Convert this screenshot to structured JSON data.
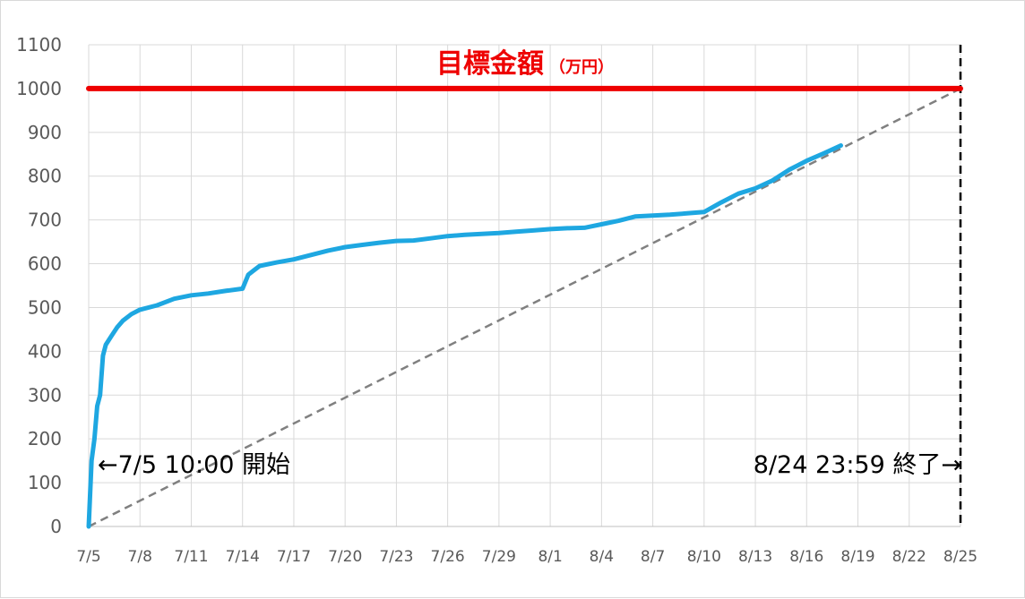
{
  "chart_data": {
    "type": "line",
    "title": "目標金額",
    "title_unit": "（万円）",
    "ylim": [
      0,
      1100
    ],
    "y_ticks": [
      "0",
      "100",
      "200",
      "300",
      "400",
      "500",
      "600",
      "700",
      "800",
      "900",
      "1000",
      "1100"
    ],
    "x_tick_labels": [
      "7/5",
      "7/8",
      "7/11",
      "7/14",
      "7/17",
      "7/20",
      "7/23",
      "7/26",
      "7/29",
      "8/1",
      "8/4",
      "8/7",
      "8/10",
      "8/13",
      "8/16",
      "8/19",
      "8/22",
      "8/25"
    ],
    "x_start": "7/5",
    "x_end": "8/25",
    "grid": true,
    "target_value": 1000,
    "target_color": "#ee0000",
    "series_color": "#1ea7e1",
    "guide_color": "#808080",
    "end_marker_color": "#000000",
    "annotations": {
      "start": "←7/5 10:00 開始",
      "end": "8/24 23:59 終了→"
    },
    "series": [
      {
        "x": [
          "7/5",
          "7/5",
          "7/5",
          "7/5",
          "7/5",
          "7/5",
          "7/6",
          "7/6",
          "7/6",
          "7/7",
          "7/7",
          "7/8",
          "7/9",
          "7/10",
          "7/11",
          "7/12",
          "7/13",
          "7/14",
          "7/14",
          "7/14",
          "7/15",
          "7/16",
          "7/17",
          "7/18",
          "7/19",
          "7/20",
          "7/21",
          "7/22",
          "7/23",
          "7/24",
          "7/25",
          "7/26",
          "7/27",
          "7/28",
          "7/29",
          "7/30",
          "7/31",
          "8/1",
          "8/2",
          "8/3",
          "8/4",
          "8/5",
          "8/6",
          "8/7",
          "8/8",
          "8/9",
          "8/10",
          "8/11",
          "8/12",
          "8/13",
          "8/14",
          "8/15",
          "8/16",
          "8/17",
          "8/18"
        ],
        "values": [
          0,
          150,
          200,
          275,
          300,
          390,
          415,
          435,
          455,
          470,
          485,
          495,
          505,
          520,
          528,
          532,
          538,
          543,
          575,
          585,
          595,
          603,
          610,
          620,
          630,
          638,
          643,
          648,
          652,
          653,
          658,
          663,
          666,
          668,
          670,
          673,
          676,
          679,
          681,
          682,
          690,
          698,
          708,
          710,
          712,
          715,
          718,
          740,
          760,
          772,
          790,
          815,
          835,
          852,
          870
        ]
      }
    ],
    "guide_line": {
      "x": [
        "7/5",
        "8/25"
      ],
      "values": [
        0,
        1000
      ]
    }
  }
}
